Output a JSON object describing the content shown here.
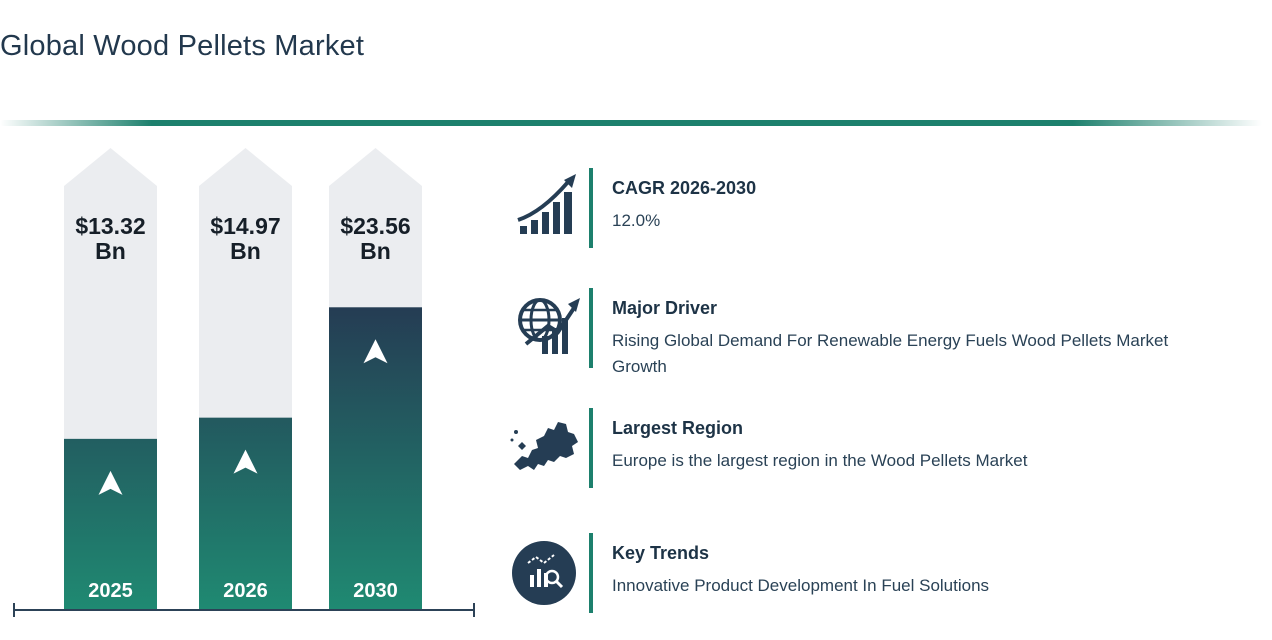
{
  "title": "Global Wood Pellets Market",
  "chart_data": {
    "type": "bar",
    "categories": [
      "2025",
      "2026",
      "2030"
    ],
    "values": [
      13.32,
      14.97,
      23.56
    ],
    "value_labels": [
      "$13.32 Bn",
      "$14.97 Bn",
      "$23.56 Bn"
    ],
    "value_labels_lines": [
      [
        "$13.32",
        "Bn"
      ],
      [
        "$14.97",
        "Bn"
      ],
      [
        "$23.56",
        "Bn"
      ]
    ],
    "unit": "Bn",
    "ylim": [
      0,
      33
    ],
    "grid": false,
    "colors": {
      "bar_top": "#253d54",
      "bar_bottom": "#1f8a72",
      "track": "#ebedf0",
      "arrow": "#ffffff",
      "axis": "#2c4257"
    }
  },
  "insights": {
    "cagr": {
      "label": "CAGR 2026-2030",
      "text": "12.0%",
      "icon": "growth-chart-icon"
    },
    "driver": {
      "label": "Major Driver",
      "text": "Rising Global Demand For Renewable Energy Fuels Wood Pellets Market Growth",
      "icon": "globe-growth-icon"
    },
    "region": {
      "label": "Largest Region",
      "text": "Europe is the largest region in the Wood Pellets Market",
      "icon": "europe-map-icon"
    },
    "trends": {
      "label": "Key Trends",
      "text": "Innovative Product Development In Fuel Solutions",
      "icon": "trend-analysis-icon"
    }
  },
  "colors": {
    "accent": "#1d806d",
    "navy": "#253d54"
  }
}
